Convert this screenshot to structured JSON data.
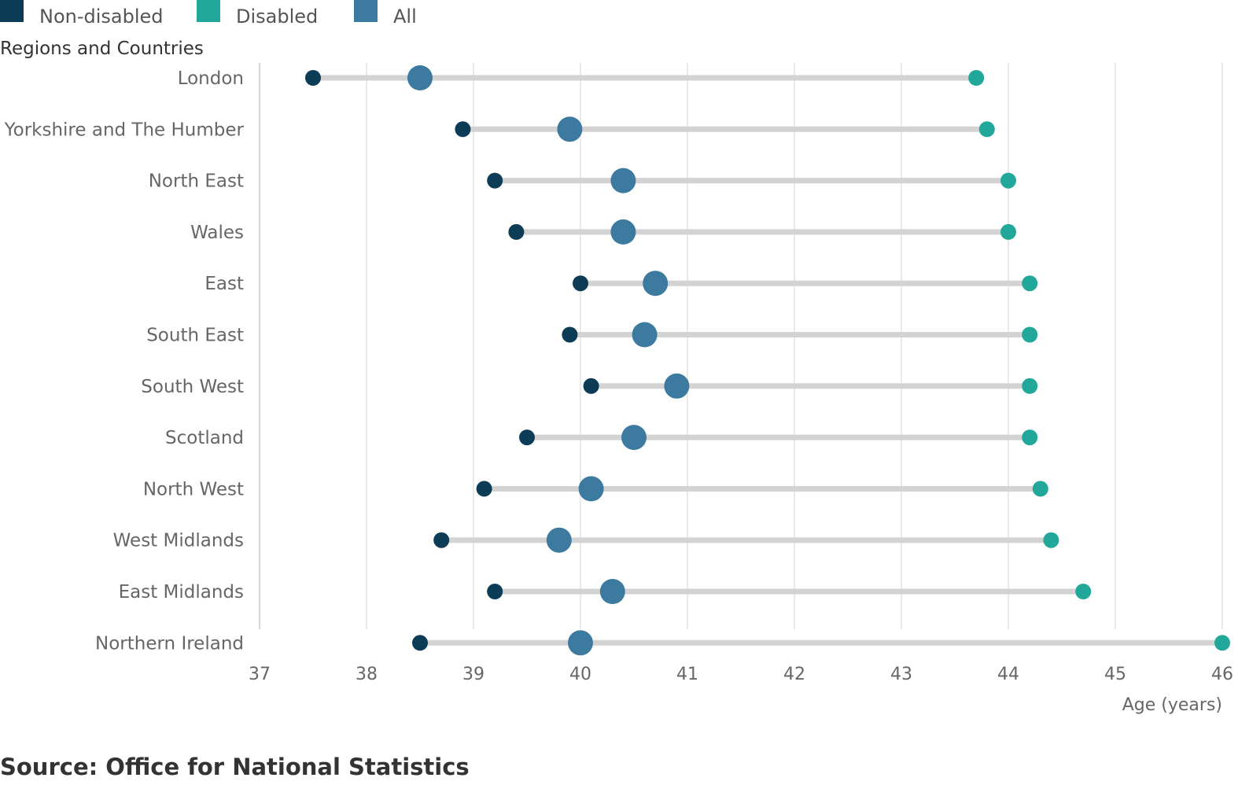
{
  "chart_data": {
    "type": "dot-range",
    "title": "",
    "ylabel": "Regions and Countries",
    "xlabel": "Age (years)",
    "xlim": [
      37,
      46
    ],
    "xticks": [
      "37",
      "38",
      "39",
      "40",
      "41",
      "42",
      "43",
      "44",
      "45",
      "46"
    ],
    "grid": true,
    "legend_position": "top-left",
    "categories": [
      "London",
      "Yorkshire and The Humber",
      "North East",
      "Wales",
      "East",
      "South East",
      "South West",
      "Scotland",
      "North West",
      "West Midlands",
      "East Midlands",
      "Northern Ireland"
    ],
    "series": [
      {
        "name": "Non-disabled",
        "color": "#0d3d56",
        "values": [
          37.5,
          38.9,
          39.2,
          39.4,
          40.0,
          39.9,
          40.1,
          39.5,
          39.1,
          38.7,
          39.2,
          38.5
        ]
      },
      {
        "name": "Disabled",
        "color": "#22a89a",
        "values": [
          43.7,
          43.8,
          44.0,
          44.0,
          44.2,
          44.2,
          44.2,
          44.2,
          44.3,
          44.4,
          44.7,
          46.0
        ]
      },
      {
        "name": "All",
        "color": "#3d7aa0",
        "values": [
          38.5,
          39.9,
          40.4,
          40.4,
          40.7,
          40.6,
          40.9,
          40.5,
          40.1,
          39.8,
          40.3,
          40.0
        ]
      }
    ]
  },
  "footer": {
    "source": "Source: Office for National Statistics"
  }
}
